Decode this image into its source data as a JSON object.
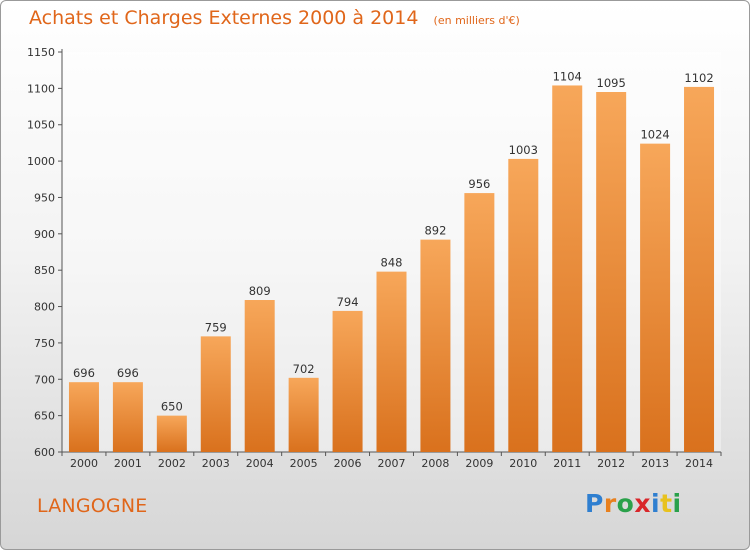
{
  "title": "Achats et Charges Externes 2000 à 2014",
  "unit_note": "(en milliers d'€)",
  "commune": "LANGOGNE",
  "logo": {
    "text": "Proxiti",
    "letters": [
      {
        "ch": "P",
        "color": "#2f7fd0"
      },
      {
        "ch": "r",
        "color": "#e8801e"
      },
      {
        "ch": "o",
        "color": "#2aa14a"
      },
      {
        "ch": "x",
        "color": "#d9262a"
      },
      {
        "ch": "i",
        "color": "#2f7fd0"
      },
      {
        "ch": "t",
        "color": "#e8c21e"
      },
      {
        "ch": "i",
        "color": "#2aa14a"
      }
    ]
  },
  "colors": {
    "accent": "#e0661a",
    "bar_top": "#f7a75a",
    "bar_bottom": "#d9711d"
  },
  "chart_data": {
    "type": "bar",
    "title": "Achats et Charges Externes 2000 à 2014",
    "subtitle": "(en milliers d'€)",
    "categories": [
      "2000",
      "2001",
      "2002",
      "2003",
      "2004",
      "2005",
      "2006",
      "2007",
      "2008",
      "2009",
      "2010",
      "2011",
      "2012",
      "2013",
      "2014"
    ],
    "values": [
      696,
      696,
      650,
      759,
      809,
      702,
      794,
      848,
      892,
      956,
      1003,
      1104,
      1095,
      1024,
      1102
    ],
    "ylim": [
      600,
      1150
    ],
    "yticks": [
      600,
      650,
      700,
      750,
      800,
      850,
      900,
      950,
      1000,
      1050,
      1100,
      1150
    ],
    "xlabel": "",
    "ylabel": "",
    "grid": false,
    "data_labels": true
  }
}
